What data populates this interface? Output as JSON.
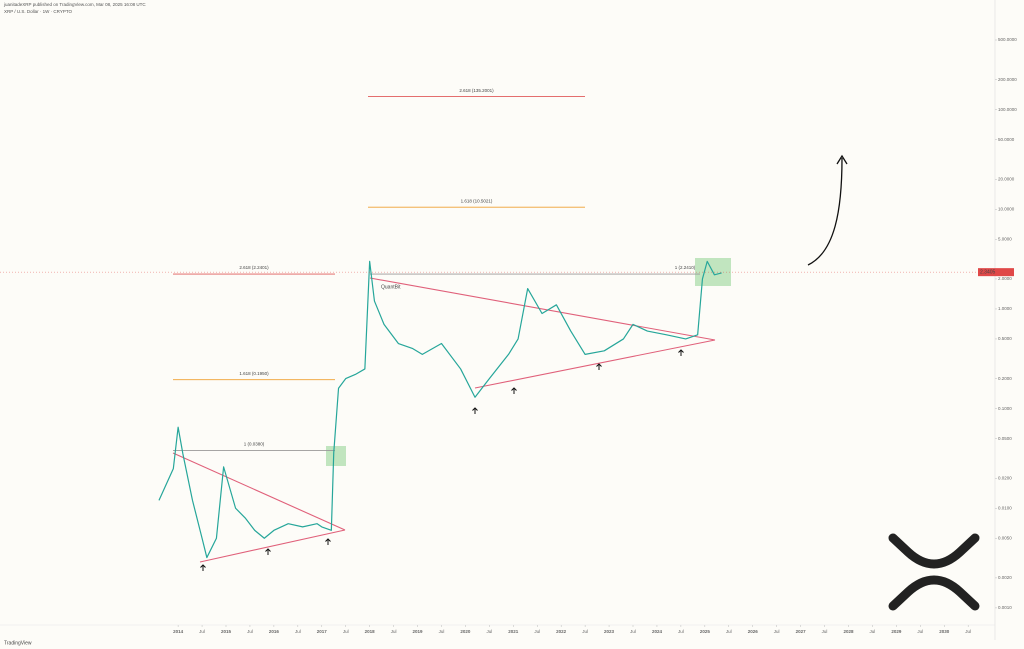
{
  "header": {
    "author_line": "juanitadeXRP published on TradingView.com, Mar 08, 2025 16:08 UTC",
    "symbol_line": "XRP / U.S. Dollar · 1W · CRYPTO"
  },
  "chart_data": {
    "type": "line",
    "x": [
      2013.6,
      2013.9,
      2014.0,
      2014.1,
      2014.3,
      2014.5,
      2014.6,
      2014.8,
      2014.95,
      2015.2,
      2015.4,
      2015.6,
      2015.8,
      2016.0,
      2016.3,
      2016.6,
      2016.9,
      2017.0,
      2017.2,
      2017.25,
      2017.35,
      2017.5,
      2017.7,
      2017.9,
      2018.0,
      2018.1,
      2018.3,
      2018.6,
      2018.9,
      2019.1,
      2019.5,
      2019.9,
      2020.2,
      2020.5,
      2020.9,
      2021.1,
      2021.3,
      2021.6,
      2021.9,
      2022.2,
      2022.5,
      2022.9,
      2023.3,
      2023.5,
      2023.8,
      2024.2,
      2024.6,
      2024.85,
      2024.95,
      2025.05,
      2025.2,
      2025.35
    ],
    "values": [
      0.012,
      0.025,
      0.065,
      0.035,
      0.012,
      0.005,
      0.0032,
      0.005,
      0.026,
      0.01,
      0.008,
      0.006,
      0.005,
      0.006,
      0.007,
      0.0065,
      0.007,
      0.0065,
      0.006,
      0.036,
      0.16,
      0.2,
      0.22,
      0.25,
      3.0,
      1.2,
      0.7,
      0.45,
      0.4,
      0.35,
      0.45,
      0.25,
      0.13,
      0.2,
      0.35,
      0.5,
      1.6,
      0.9,
      1.1,
      0.6,
      0.35,
      0.38,
      0.5,
      0.7,
      0.6,
      0.55,
      0.5,
      0.55,
      2.0,
      3.0,
      2.2,
      2.3
    ],
    "color": "#26a69a",
    "xlim": [
      2010.28,
      2031.06
    ],
    "xticks": [
      2014,
      {
        "value": 2014.5,
        "label": "Jul"
      },
      2015,
      {
        "value": 2015.5,
        "label": "Jul"
      },
      2016,
      {
        "value": 2016.5,
        "label": "Jul"
      },
      2017,
      {
        "value": 2017.5,
        "label": "Jul"
      },
      2018,
      {
        "value": 2018.5,
        "label": "Jul"
      },
      2019,
      {
        "value": 2019.5,
        "label": "Jul"
      },
      2020,
      {
        "value": 2020.5,
        "label": "Jul"
      },
      2021,
      {
        "value": 2021.5,
        "label": "Jul"
      },
      2022,
      {
        "value": 2022.5,
        "label": "Jul"
      },
      2023,
      {
        "value": 2023.5,
        "label": "Jul"
      },
      2024,
      {
        "value": 2024.5,
        "label": "Jul"
      },
      2025,
      {
        "value": 2025.5,
        "label": "Jul"
      },
      2026,
      {
        "value": 2026.5,
        "label": "Jul"
      },
      2027,
      {
        "value": 2027.5,
        "label": "Jul"
      },
      2028,
      {
        "value": 2028.5,
        "label": "Jul"
      },
      2029,
      {
        "value": 2029.5,
        "label": "Jul"
      },
      2030,
      {
        "value": 2030.5,
        "label": "Jul"
      }
    ],
    "ylim": [
      0.0006,
      1000
    ],
    "log_scale": true,
    "yticks": [
      {
        "value": 0.001,
        "label": "0.0010"
      },
      {
        "value": 0.002,
        "label": "0.0020"
      },
      {
        "value": 0.005,
        "label": "0.0050"
      },
      {
        "value": 0.01,
        "label": "0.0100"
      },
      {
        "value": 0.02,
        "label": "0.0200"
      },
      {
        "value": 0.05,
        "label": "0.0500"
      },
      {
        "value": 0.1,
        "label": "0.1000"
      },
      {
        "value": 0.2,
        "label": "0.2000"
      },
      {
        "value": 0.5,
        "label": "0.5000"
      },
      {
        "value": 1,
        "label": "1.0000"
      },
      {
        "value": 2,
        "label": "2.0000"
      },
      {
        "value": 5,
        "label": "5.0000"
      },
      {
        "value": 10,
        "label": "10.0000"
      },
      {
        "value": 20,
        "label": "20.0000"
      },
      {
        "value": 50,
        "label": "50.0000"
      },
      {
        "value": 100,
        "label": "100.0000"
      },
      {
        "value": 200,
        "label": "200.0000"
      },
      {
        "value": 500,
        "label": "500.0000"
      }
    ],
    "levels": [
      {
        "label": "2.618 (135.2001)",
        "value": 135.2001,
        "color": "#e05a5a"
      },
      {
        "label": "1.618 (10.5021)",
        "value": 10.5021,
        "color": "#f0a030"
      },
      {
        "label": "1 (2.2410)",
        "value": 2.241,
        "color": "#999999"
      },
      {
        "label": "2.618 (2.2401)",
        "value": 2.2401,
        "color": "#e05a5a"
      },
      {
        "label": "1.618 (0.1950)",
        "value": 0.195,
        "color": "#f0a030"
      },
      {
        "label": "1 (0.0380)",
        "value": 0.038,
        "color": "#999999"
      }
    ],
    "last_price": 2.3405,
    "watermark": "QuantBit"
  },
  "footer": "TradingView"
}
